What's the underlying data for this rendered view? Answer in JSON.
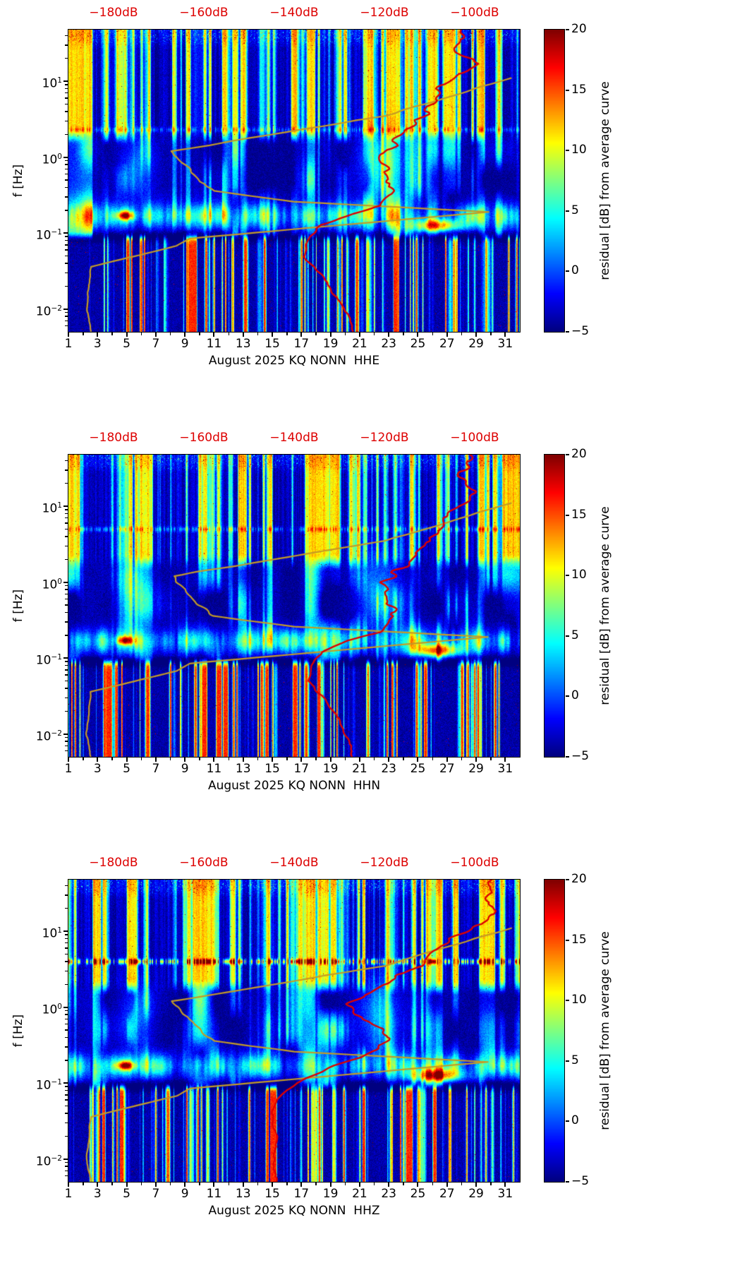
{
  "chart_data": {
    "type": "heatmap",
    "panels": [
      {
        "title": "August 2025 KQ NONN  HHE",
        "hline": {
          "f": 2.3,
          "amp": 4
        },
        "red_curve": [
          [
            -102,
            48
          ],
          [
            -104,
            24
          ],
          [
            -100,
            17
          ],
          [
            -108,
            8
          ],
          [
            -111,
            3.7
          ],
          [
            -117,
            1.7
          ],
          [
            -120.5,
            1.0
          ],
          [
            -119,
            0.49
          ],
          [
            -118.5,
            0.33
          ],
          [
            -121,
            0.23
          ],
          [
            -127,
            0.18
          ],
          [
            -134,
            0.128
          ],
          [
            -136.5,
            0.088
          ],
          [
            -138,
            0.049
          ],
          [
            -134,
            0.029
          ],
          [
            -131.5,
            0.017
          ],
          [
            -128,
            0.0078
          ],
          [
            -127,
            0.005
          ]
        ]
      },
      {
        "title": "August 2025 KQ NONN  HHN",
        "hline": {
          "f": 5,
          "amp": 5
        },
        "red_curve": [
          [
            -101,
            48
          ],
          [
            -103,
            25
          ],
          [
            -99,
            15
          ],
          [
            -107,
            7
          ],
          [
            -110,
            3.5
          ],
          [
            -116,
            1.6
          ],
          [
            -120,
            1.0
          ],
          [
            -118.5,
            0.5
          ],
          [
            -118,
            0.33
          ],
          [
            -121,
            0.22
          ],
          [
            -128,
            0.17
          ],
          [
            -134,
            0.12
          ],
          [
            -136,
            0.08
          ],
          [
            -137,
            0.05
          ],
          [
            -133,
            0.028
          ],
          [
            -130,
            0.015
          ],
          [
            -127.5,
            0.007
          ],
          [
            -127,
            0.005
          ]
        ]
      },
      {
        "title": "August 2025 KQ NONN  HHZ",
        "hline": {
          "f": 4,
          "amp": 13
        },
        "red_curve": [
          [
            -96,
            48
          ],
          [
            -97,
            26
          ],
          [
            -95,
            17
          ],
          [
            -105,
            8
          ],
          [
            -112,
            3.5
          ],
          [
            -122,
            1.8
          ],
          [
            -128,
            1.1
          ],
          [
            -125,
            0.7
          ],
          [
            -119,
            0.42
          ],
          [
            -121,
            0.3
          ],
          [
            -125,
            0.22
          ],
          [
            -131,
            0.17
          ],
          [
            -138,
            0.11
          ],
          [
            -143,
            0.07
          ],
          [
            -145,
            0.04
          ],
          [
            -144,
            0.02
          ],
          [
            -144.5,
            0.009
          ],
          [
            -144,
            0.005
          ]
        ]
      }
    ],
    "x_axis": {
      "ticks": [
        1,
        3,
        5,
        7,
        9,
        11,
        13,
        15,
        17,
        19,
        21,
        23,
        25,
        27,
        29,
        31
      ],
      "range": [
        1,
        32
      ]
    },
    "y_axis": {
      "label": "f [Hz]",
      "tick_exponents": [
        1,
        0,
        -1,
        -2
      ],
      "log10_top": 1.68,
      "log10_bottom": -2.3
    },
    "top_axis": {
      "labels": [
        "−180dB",
        "−160dB",
        "−140dB",
        "−120dB",
        "−100dB"
      ],
      "values": [
        -180,
        -160,
        -140,
        -120,
        -100
      ],
      "range": [
        -190,
        -90
      ],
      "color": "#dd0000"
    },
    "colorbar": {
      "label": "residual [dB] from average curve",
      "ticks": [
        20,
        15,
        10,
        5,
        0,
        -5
      ],
      "vmin": -5,
      "vmax": 20
    },
    "average_curve": {
      "color": "#c49b26",
      "points": [
        [
          -92,
          11
        ],
        [
          -120,
          3.5
        ],
        [
          -167,
          1.2
        ],
        [
          -161,
          0.5
        ],
        [
          -158,
          0.36
        ],
        [
          -140,
          0.26
        ],
        [
          -97,
          0.19
        ],
        [
          -163,
          0.085
        ],
        [
          -166,
          0.068
        ],
        [
          -185,
          0.036
        ],
        [
          -186,
          0.01
        ],
        [
          -185,
          0.005
        ]
      ]
    },
    "red_curve_color": "#dd0000",
    "hot_spots": [
      {
        "day": 4.9,
        "f": 0.17,
        "amp": 15,
        "sd": 0.55,
        "sl": 0.055
      },
      {
        "day": 26.3,
        "f": 0.125,
        "amp": 16,
        "sd": 1.6,
        "sl": 0.085
      },
      {
        "day": 22.3,
        "f": 0.8,
        "amp": 6,
        "sd": 1.6,
        "sl": 0.5
      },
      {
        "day": 5.6,
        "f": 0.7,
        "amp": 5,
        "sd": 1.2,
        "sl": 0.45
      }
    ]
  }
}
